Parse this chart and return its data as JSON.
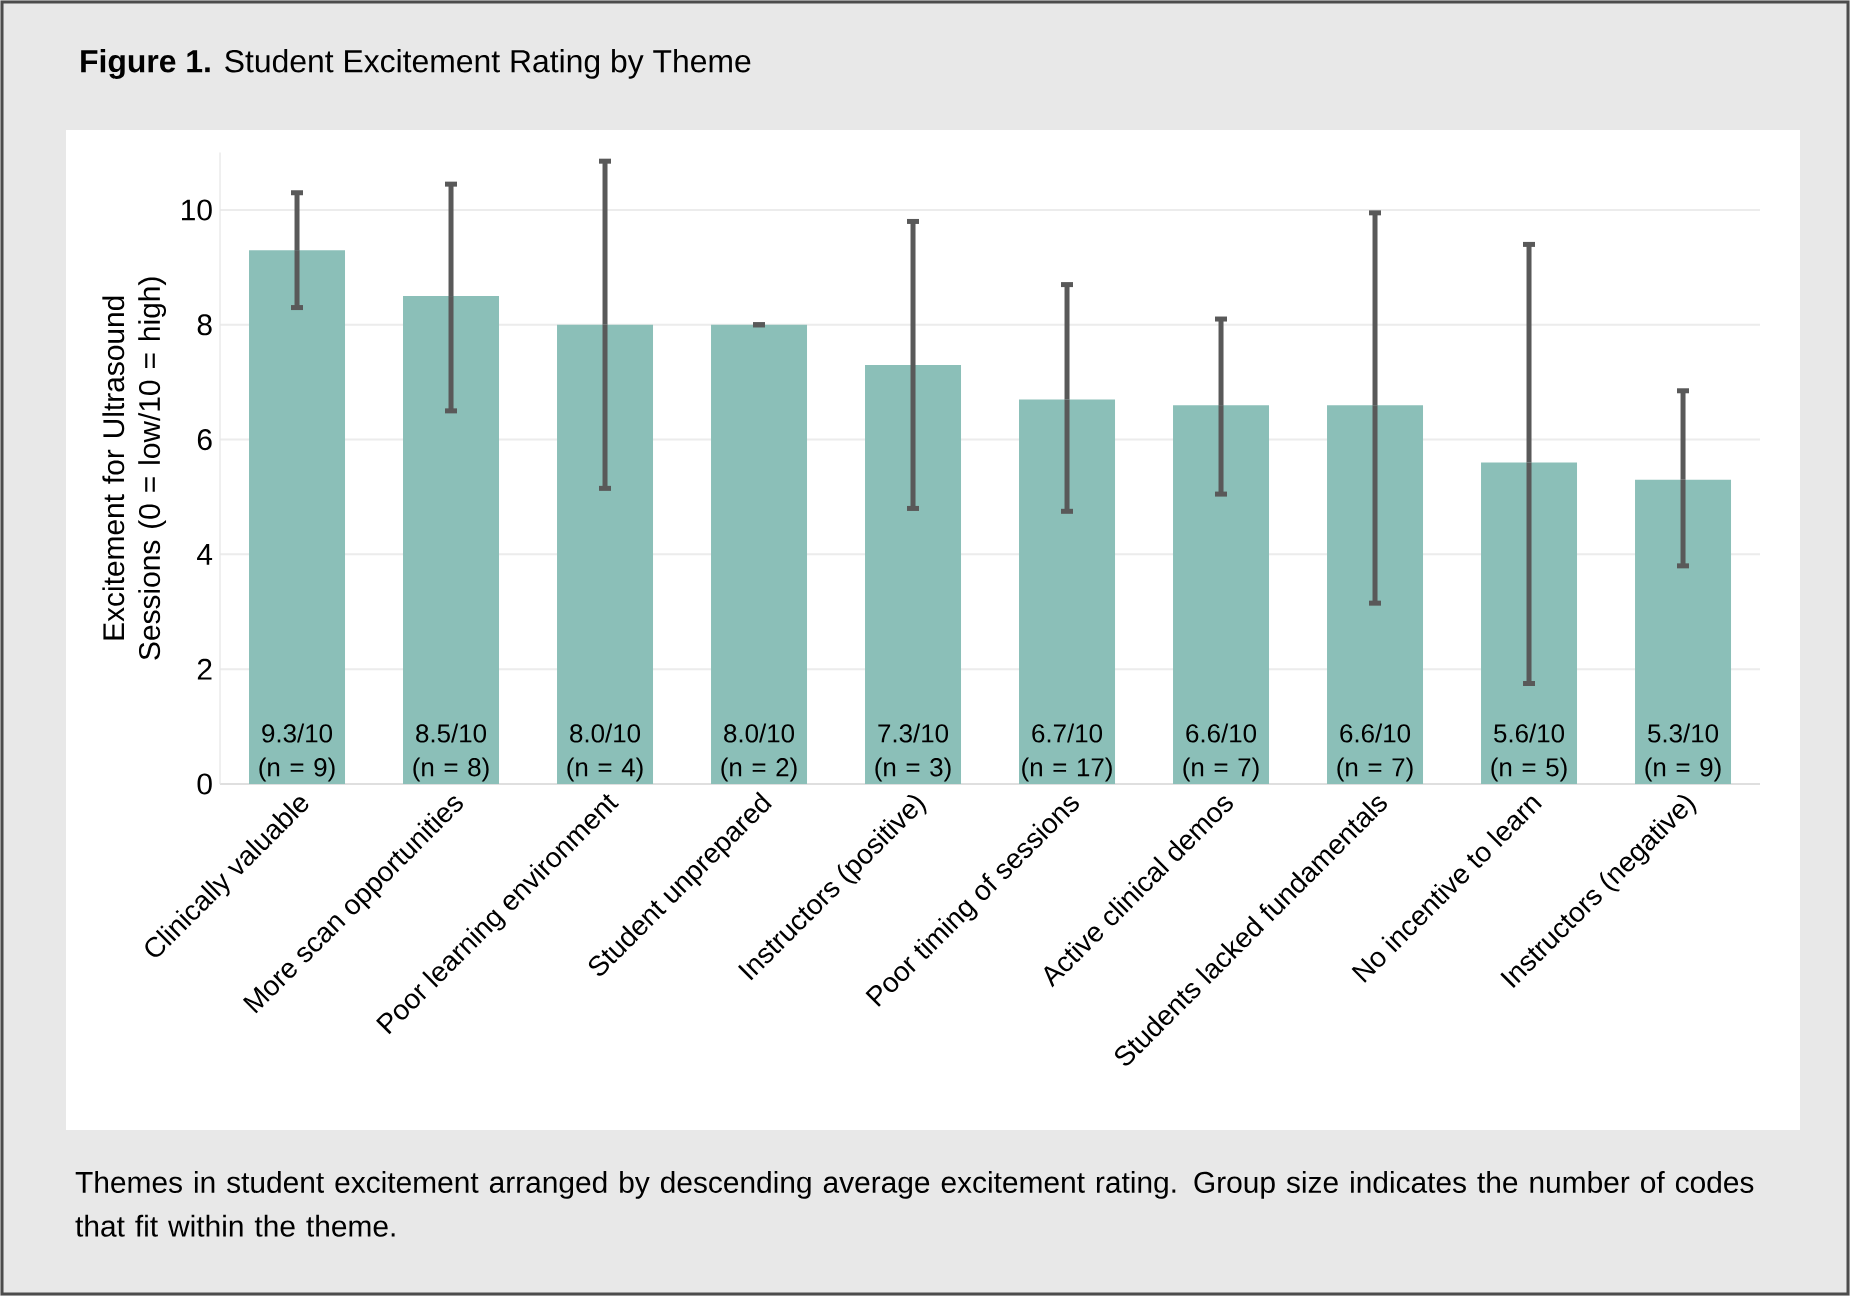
{
  "chart_data": {
    "type": "bar",
    "title": "**Figure 1.** Student Excitement Rating by Theme",
    "ylabel": "Excitement for Ultrasound Sessions (0 = low/10 = high)",
    "categories": [
      "Clinically valuable",
      "More scan opportunities",
      "Poor learning environment",
      "Student unprepared",
      "Instructors (positive)",
      "Poor timing of sessions",
      "Active clinical demos",
      "Students lacked fundamentals",
      "No incentive to learn",
      "Instructors (negative)"
    ],
    "values": [
      9.3,
      8.5,
      8.0,
      8.0,
      7.3,
      6.7,
      6.6,
      6.6,
      5.6,
      5.3
    ],
    "errors": [
      [
        8.3,
        10.3
      ],
      [
        6.5,
        10.45
      ],
      [
        5.15,
        10.85
      ],
      [
        8.0,
        8.0
      ],
      [
        4.8,
        9.8
      ],
      [
        4.75,
        8.7
      ],
      [
        5.05,
        8.1
      ],
      [
        3.15,
        9.95
      ],
      [
        1.75,
        9.4
      ],
      [
        3.8,
        6.85
      ]
    ],
    "value_labels": [
      "9.3/10 (n = 9)",
      "8.5/10 (n = 8)",
      "8.0/10 (n = 4)",
      "8.0/10 (n = 2)",
      "7.3/10 (n = 3)",
      "6.7/10 (n = 17)",
      "6.6/10 (n = 7)",
      "6.6/10 (n = 7)",
      "5.6/10 (n = 5)",
      "5.3/10 (n = 9)"
    ],
    "color": "#8bbfb8",
    "ylim": [
      0,
      11
    ],
    "yticks": [
      0,
      2,
      4,
      6,
      8,
      10
    ],
    "grid": "y",
    "annotations": [
      "Themes in student excitement arranged by descending average excitement rating. Group size indicates the number of codes that fit within the theme."
    ]
  }
}
